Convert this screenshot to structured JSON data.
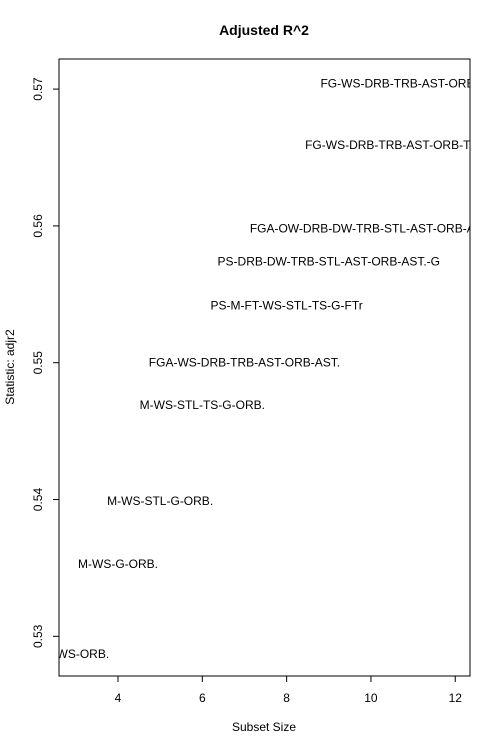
{
  "chart_data": {
    "type": "scatter",
    "title": "Adjusted R^2",
    "xlabel": "Subset Size",
    "ylabel": "Statistic: adjr2",
    "xlim": [
      2.6,
      12.35
    ],
    "ylim": [
      0.5271,
      0.5722
    ],
    "x_ticks": [
      4,
      6,
      8,
      10,
      12
    ],
    "y_ticks": [
      0.53,
      0.54,
      0.55,
      0.56,
      0.57
    ],
    "x_tick_labels": [
      "4",
      "6",
      "8",
      "10",
      "12"
    ],
    "y_tick_labels": [
      "0.53",
      "0.54",
      "0.55",
      "0.56",
      "0.57"
    ],
    "grid": false,
    "points": [
      {
        "x": 3,
        "y": 0.5287,
        "label": "M-WS-ORB."
      },
      {
        "x": 4,
        "y": 0.5353,
        "label": "M-WS-G-ORB."
      },
      {
        "x": 5,
        "y": 0.5399,
        "label": "M-WS-STL-G-ORB."
      },
      {
        "x": 6,
        "y": 0.5469,
        "label": "M-WS-STL-TS-G-ORB."
      },
      {
        "x": 7,
        "y": 0.55,
        "label": "FGA-WS-DRB-TRB-AST-ORB-AST."
      },
      {
        "x": 8,
        "y": 0.5542,
        "label": "PS-M-FT-WS-STL-TS-G-FTr"
      },
      {
        "x": 9,
        "y": 0.5574,
        "label": "PS-DRB-DW-TRB-STL-AST-ORB-AST.-G"
      },
      {
        "x": 10,
        "y": 0.5598,
        "label": "FGA-OW-DRB-DW-TRB-STL-AST-ORB-AST."
      },
      {
        "x": 11,
        "y": 0.5659,
        "label": "FG-WS-DRB-TRB-AST-ORB-TS-AST.-G"
      },
      {
        "x": 12,
        "y": 0.5704,
        "label": "FG-WS-DRB-TRB-AST-ORB-TS-AST.-G-e-FTr-FT."
      }
    ]
  }
}
